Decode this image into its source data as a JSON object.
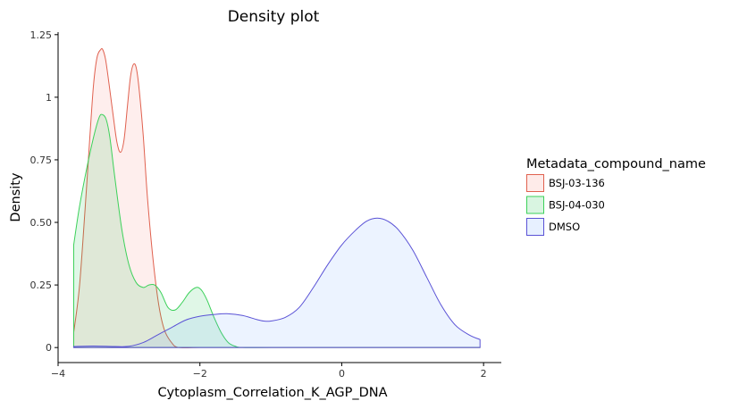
{
  "chart_data": {
    "type": "area",
    "title": "Density plot",
    "xlabel": "Cytoplasm_Correlation_K_AGP_DNA",
    "ylabel": "Density",
    "xlim": [
      -4.0,
      2.25
    ],
    "ylim": [
      -0.06,
      1.26
    ],
    "x_ticks": [
      -4,
      -2,
      0,
      2
    ],
    "x_tick_labels": [
      "−4",
      "−2",
      "0",
      "2"
    ],
    "y_ticks": [
      0,
      0.25,
      0.5,
      0.75,
      1,
      1.25
    ],
    "y_tick_labels": [
      "0",
      "0.25",
      "0.50",
      "0.75",
      "1",
      "1.25"
    ],
    "grid": false,
    "legend": {
      "title": "Metadata_compound_name",
      "position": "right"
    },
    "series": [
      {
        "name": "BSJ-03-136",
        "line_color": "#E0614F",
        "fill_color": "#F8766D",
        "points": [
          [
            -3.78,
            0.06
          ],
          [
            -3.7,
            0.24
          ],
          [
            -3.62,
            0.55
          ],
          [
            -3.55,
            0.85
          ],
          [
            -3.5,
            1.05
          ],
          [
            -3.45,
            1.16
          ],
          [
            -3.4,
            1.19
          ],
          [
            -3.37,
            1.19
          ],
          [
            -3.33,
            1.15
          ],
          [
            -3.28,
            1.05
          ],
          [
            -3.22,
            0.92
          ],
          [
            -3.17,
            0.82
          ],
          [
            -3.12,
            0.78
          ],
          [
            -3.07,
            0.83
          ],
          [
            -3.02,
            0.97
          ],
          [
            -2.98,
            1.08
          ],
          [
            -2.94,
            1.13
          ],
          [
            -2.9,
            1.12
          ],
          [
            -2.86,
            1.04
          ],
          [
            -2.8,
            0.85
          ],
          [
            -2.74,
            0.6
          ],
          [
            -2.66,
            0.35
          ],
          [
            -2.58,
            0.17
          ],
          [
            -2.5,
            0.07
          ],
          [
            -2.4,
            0.02
          ],
          [
            -2.3,
            0.0
          ],
          [
            -2.0,
            0.0
          ],
          [
            -1.5,
            0.0
          ],
          [
            -1.0,
            0.0
          ],
          [
            0.0,
            0.0
          ],
          [
            1.0,
            0.0
          ],
          [
            1.95,
            0.0
          ]
        ]
      },
      {
        "name": "BSJ-04-030",
        "line_color": "#3CD15A",
        "fill_color": "#00BA38",
        "points": [
          [
            -3.78,
            0.41
          ],
          [
            -3.7,
            0.56
          ],
          [
            -3.6,
            0.71
          ],
          [
            -3.5,
            0.84
          ],
          [
            -3.42,
            0.92
          ],
          [
            -3.37,
            0.93
          ],
          [
            -3.32,
            0.91
          ],
          [
            -3.27,
            0.84
          ],
          [
            -3.2,
            0.68
          ],
          [
            -3.1,
            0.47
          ],
          [
            -3.0,
            0.33
          ],
          [
            -2.9,
            0.26
          ],
          [
            -2.8,
            0.24
          ],
          [
            -2.72,
            0.25
          ],
          [
            -2.64,
            0.25
          ],
          [
            -2.55,
            0.22
          ],
          [
            -2.45,
            0.16
          ],
          [
            -2.35,
            0.15
          ],
          [
            -2.25,
            0.18
          ],
          [
            -2.15,
            0.22
          ],
          [
            -2.05,
            0.24
          ],
          [
            -1.98,
            0.23
          ],
          [
            -1.9,
            0.19
          ],
          [
            -1.8,
            0.12
          ],
          [
            -1.7,
            0.06
          ],
          [
            -1.6,
            0.02
          ],
          [
            -1.5,
            0.005
          ],
          [
            -1.4,
            0.0
          ],
          [
            -1.0,
            0.0
          ],
          [
            0.0,
            0.0
          ],
          [
            1.0,
            0.0
          ],
          [
            1.95,
            0.0
          ]
        ]
      },
      {
        "name": "DMSO",
        "line_color": "#5A52D6",
        "fill_color": "#619CFF",
        "points": [
          [
            -3.78,
            0.004
          ],
          [
            -3.5,
            0.006
          ],
          [
            -3.2,
            0.004
          ],
          [
            -3.0,
            0.005
          ],
          [
            -2.8,
            0.02
          ],
          [
            -2.6,
            0.05
          ],
          [
            -2.4,
            0.08
          ],
          [
            -2.2,
            0.11
          ],
          [
            -2.0,
            0.125
          ],
          [
            -1.8,
            0.132
          ],
          [
            -1.6,
            0.135
          ],
          [
            -1.4,
            0.128
          ],
          [
            -1.2,
            0.112
          ],
          [
            -1.1,
            0.106
          ],
          [
            -1.0,
            0.106
          ],
          [
            -0.8,
            0.12
          ],
          [
            -0.6,
            0.16
          ],
          [
            -0.4,
            0.24
          ],
          [
            -0.2,
            0.33
          ],
          [
            0.0,
            0.41
          ],
          [
            0.2,
            0.47
          ],
          [
            0.35,
            0.505
          ],
          [
            0.5,
            0.517
          ],
          [
            0.65,
            0.505
          ],
          [
            0.8,
            0.47
          ],
          [
            1.0,
            0.39
          ],
          [
            1.2,
            0.28
          ],
          [
            1.4,
            0.17
          ],
          [
            1.6,
            0.09
          ],
          [
            1.8,
            0.05
          ],
          [
            1.95,
            0.032
          ]
        ]
      }
    ]
  }
}
